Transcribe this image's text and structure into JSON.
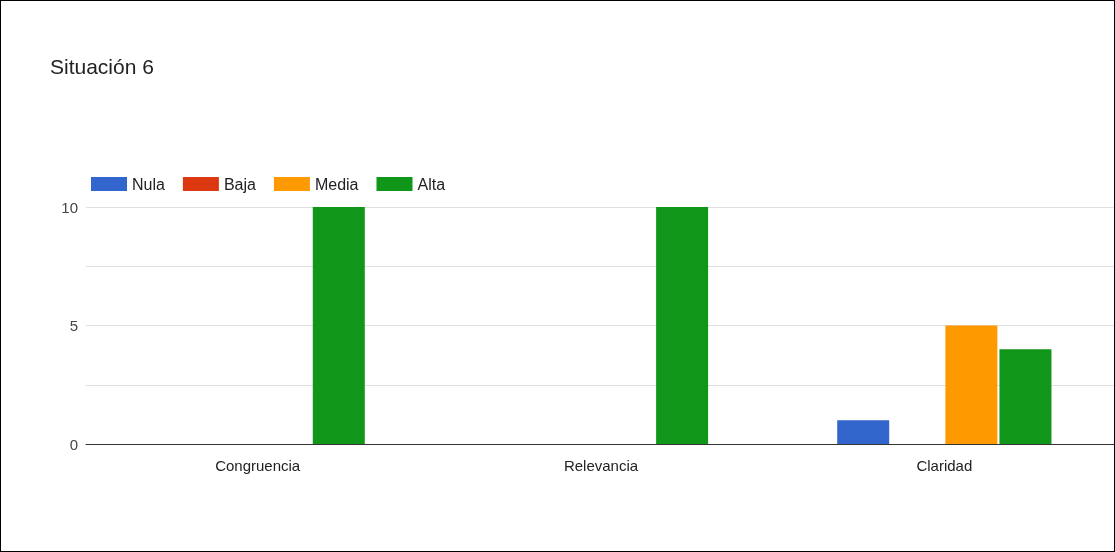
{
  "chart_data": {
    "type": "bar",
    "title": "Situación 6",
    "categories": [
      "Congruencia",
      "Relevancia",
      "Claridad"
    ],
    "series": [
      {
        "name": "Nula",
        "color": "#3366cc",
        "values": [
          0,
          0,
          1
        ]
      },
      {
        "name": "Baja",
        "color": "#dc3912",
        "values": [
          0,
          0,
          0
        ]
      },
      {
        "name": "Media",
        "color": "#ff9900",
        "values": [
          0,
          0,
          5
        ]
      },
      {
        "name": "Alta",
        "color": "#109618",
        "values": [
          10,
          10,
          4
        ]
      }
    ],
    "ylim": [
      0,
      10
    ],
    "yticks": [
      0,
      {
        "value": 2.5,
        "label": null
      },
      5,
      {
        "value": 7.5,
        "label": null
      },
      10
    ],
    "grid": "y",
    "legend": "top left"
  }
}
